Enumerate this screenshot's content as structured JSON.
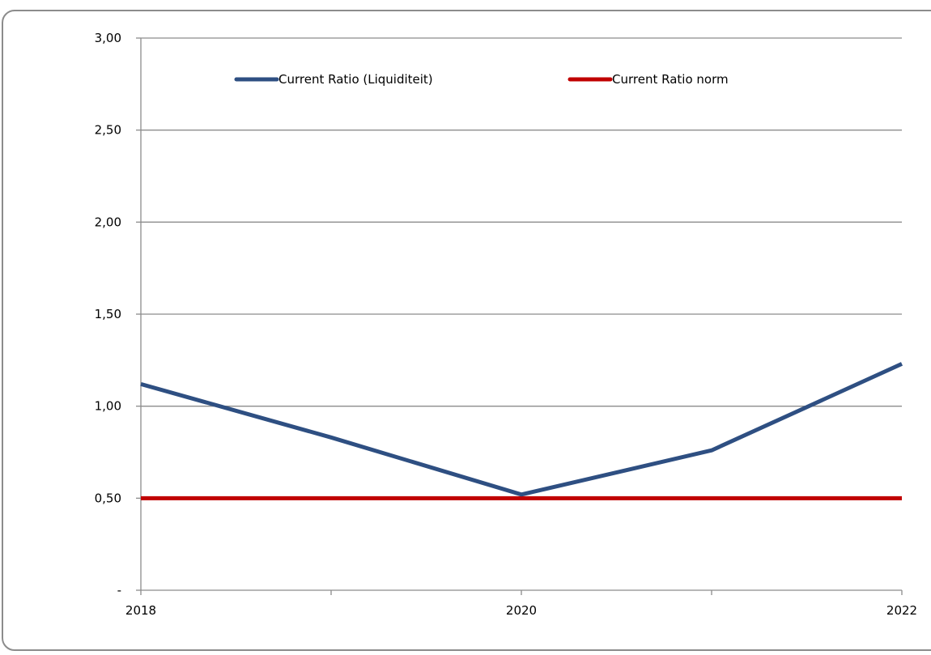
{
  "chart_data": {
    "type": "line",
    "title": "",
    "xlabel": "",
    "ylabel": "",
    "x": [
      2018,
      2019,
      2020,
      2021,
      2022
    ],
    "x_tick_labels": [
      "2018",
      "2020",
      "2022"
    ],
    "y_tick_labels": [
      "-",
      "0,50",
      "1,00",
      "1,50",
      "2,00",
      "2,50",
      "3,00"
    ],
    "ylim": [
      0,
      3
    ],
    "grid": "horizontal",
    "legend_position": "top",
    "series": [
      {
        "name": "Current Ratio (Liquiditeit)",
        "values": [
          1.12,
          0.83,
          0.52,
          0.76,
          1.23
        ],
        "color": "#2e4f82"
      },
      {
        "name": "Current Ratio norm",
        "values": [
          0.5,
          0.5,
          0.5,
          0.5,
          0.5
        ],
        "color": "#c00000"
      }
    ]
  }
}
